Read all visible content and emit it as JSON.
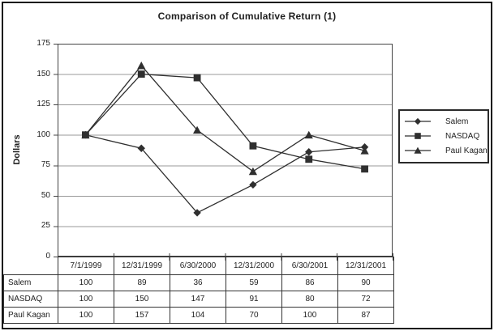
{
  "page": {
    "background": "#ffffff",
    "frame_color": "#151515"
  },
  "chart_data": {
    "type": "line",
    "title": "Comparison of Cumulative Return (1)",
    "ylabel": "Dollars",
    "xlabel": "",
    "categories": [
      "7/1/1999",
      "12/31/1999",
      "6/30/2000",
      "12/31/2000",
      "6/30/2001",
      "12/31/2001"
    ],
    "series": [
      {
        "name": "Salem",
        "marker": "diamond",
        "values": [
          100,
          89,
          36,
          59,
          86,
          90
        ]
      },
      {
        "name": "NASDAQ",
        "marker": "square",
        "values": [
          100,
          150,
          147,
          91,
          80,
          72
        ]
      },
      {
        "name": "Paul Kagan",
        "marker": "triangle",
        "values": [
          100,
          157,
          104,
          70,
          100,
          87
        ]
      }
    ],
    "ylim": [
      0,
      175
    ],
    "yticks": [
      175,
      150,
      125,
      100,
      75,
      50,
      25,
      0
    ],
    "grid": true,
    "legend_position": "right",
    "colors": {
      "line": "#2f2f2f",
      "marker": "#2f2f2f",
      "grid": "#999999",
      "axis": "#444444",
      "text": "#1f1f1f"
    }
  }
}
